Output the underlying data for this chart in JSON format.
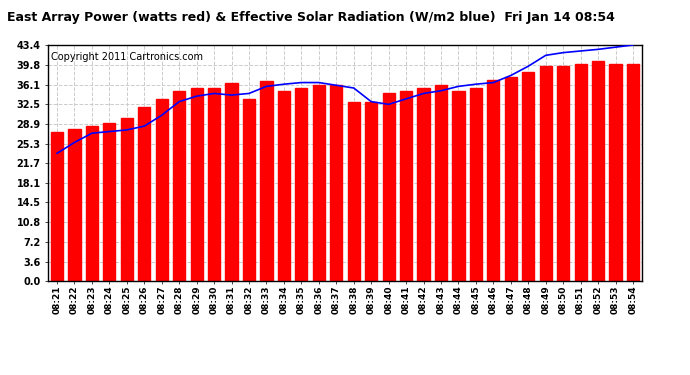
{
  "title": "East Array Power (watts red) & Effective Solar Radiation (W/m2 blue)  Fri Jan 14 08:54",
  "copyright": "Copyright 2011 Cartronics.com",
  "bar_color": "#ff0000",
  "line_color": "#0000ff",
  "bg_color": "#ffffff",
  "yticks": [
    0.0,
    3.6,
    7.2,
    10.8,
    14.5,
    18.1,
    21.7,
    25.3,
    28.9,
    32.5,
    36.1,
    39.8,
    43.4
  ],
  "ylim": [
    0.0,
    43.4
  ],
  "xlabels": [
    "08:21",
    "08:22",
    "08:23",
    "08:24",
    "08:25",
    "08:26",
    "08:27",
    "08:28",
    "08:29",
    "08:30",
    "08:31",
    "08:32",
    "08:33",
    "08:34",
    "08:35",
    "08:36",
    "08:37",
    "08:38",
    "08:39",
    "08:40",
    "08:41",
    "08:42",
    "08:43",
    "08:44",
    "08:45",
    "08:46",
    "08:47",
    "08:48",
    "08:49",
    "08:50",
    "08:51",
    "08:52",
    "08:53",
    "08:54"
  ],
  "bar_values": [
    27.5,
    28.0,
    28.5,
    29.0,
    30.0,
    32.0,
    33.5,
    35.0,
    35.5,
    35.5,
    36.5,
    33.5,
    36.8,
    35.0,
    35.5,
    36.0,
    36.0,
    33.0,
    33.0,
    34.5,
    35.0,
    35.5,
    36.0,
    35.0,
    35.5,
    37.0,
    37.5,
    38.5,
    39.5,
    39.5,
    40.0,
    40.5,
    40.0,
    40.0
  ],
  "line_values": [
    23.5,
    25.5,
    27.2,
    27.5,
    27.8,
    28.5,
    30.5,
    33.0,
    34.0,
    34.5,
    34.2,
    34.5,
    35.8,
    36.2,
    36.5,
    36.5,
    36.0,
    35.5,
    33.0,
    32.5,
    33.5,
    34.5,
    35.0,
    35.8,
    36.2,
    36.5,
    37.8,
    39.5,
    41.5,
    42.0,
    42.3,
    42.6,
    43.0,
    43.4
  ],
  "bar_width": 0.7,
  "title_fontsize": 9,
  "tick_fontsize": 7,
  "copyright_fontsize": 7
}
